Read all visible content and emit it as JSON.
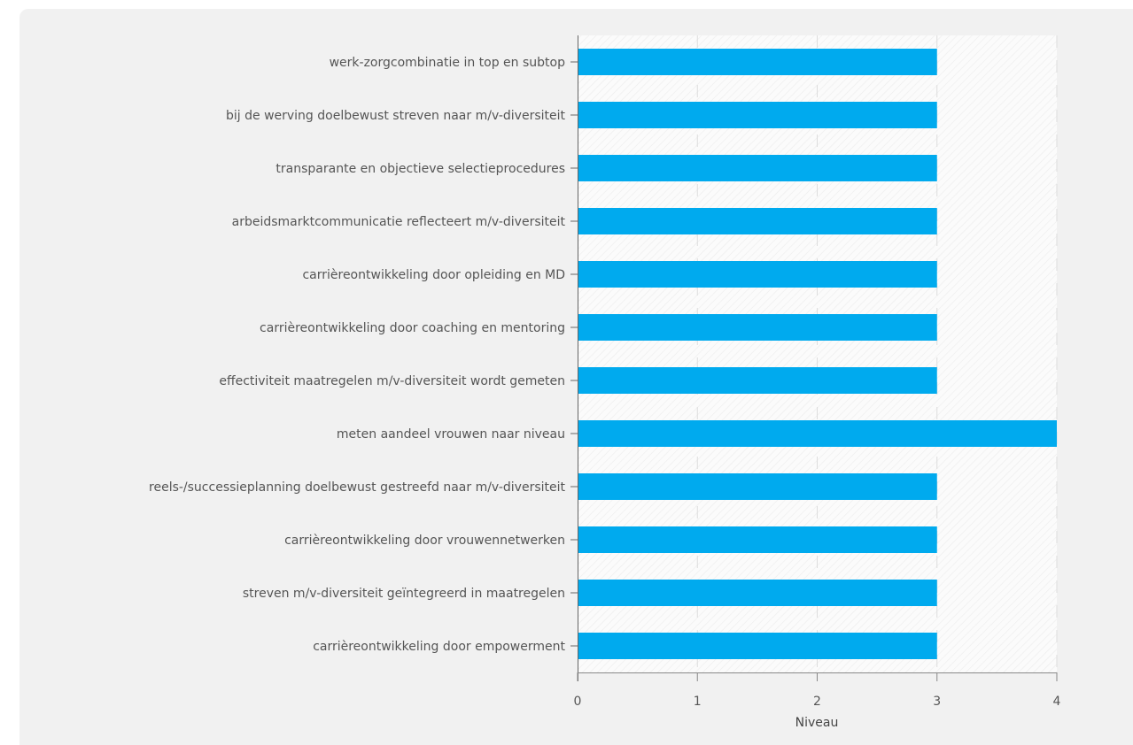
{
  "chart_data": {
    "type": "bar",
    "orientation": "horizontal",
    "categories": [
      "werk-zorgcombinatie in top en subtop",
      "bij de werving doelbewust streven naar m/v-diversiteit",
      "transparante en objectieve selectieprocedures",
      "arbeidsmarktcommunicatie reflecteert m/v-diversiteit",
      "carrièreontwikkeling door opleiding en MD",
      "carrièreontwikkeling door coaching en mentoring",
      "effectiviteit maatregelen m/v-diversiteit wordt gemeten",
      "meten aandeel vrouwen naar niveau",
      "reels-/successieplanning doelbewust gestreefd naar m/v-diversiteit",
      "carrièreontwikkeling door vrouwennetwerken",
      "streven m/v-diversiteit geïntegreerd in maatregelen",
      "carrièreontwikkeling door empowerment"
    ],
    "values": [
      3,
      3,
      3,
      3,
      3,
      3,
      3,
      4,
      3,
      3,
      3,
      3
    ],
    "xlabel": "Niveau",
    "ylabel": "",
    "xlim": [
      0,
      4
    ],
    "xticks": [
      "0",
      "1",
      "2",
      "3",
      "4"
    ],
    "grid": "dashed vertical",
    "bar_color": "#00aaee"
  }
}
